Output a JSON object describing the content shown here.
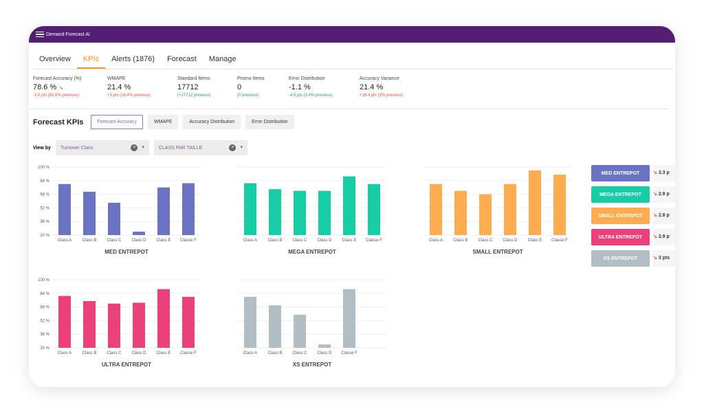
{
  "app": {
    "title": "Demand Forecast AI"
  },
  "tabs": [
    "Overview",
    "KPIs",
    "Alerts (1876)",
    "Forecast",
    "Manage"
  ],
  "kpis": [
    {
      "label": "Forecast Accuracy (%)",
      "value": "78.6 %",
      "delta": "-3.0 pts (81.6% previous)",
      "tone": "red",
      "trend": true
    },
    {
      "label": "WMAPE",
      "value": "21.4 %",
      "delta": "+3 pts (18.4% previous)",
      "tone": "red"
    },
    {
      "label": "Standard Items",
      "value": "17712",
      "delta": "(+17712 previous)",
      "tone": "green"
    },
    {
      "label": "Promo Items",
      "value": "0",
      "delta": "(0 previous)",
      "tone": "green"
    },
    {
      "label": "Error Distribution",
      "value": "-1.1 %",
      "delta": "-4.5 pts (3.4% previous)",
      "tone": "green"
    },
    {
      "label": "Accuracy Variance",
      "value": "21.4 %",
      "delta": "+18.4 pts (3% previous)",
      "tone": "red"
    }
  ],
  "section": {
    "title": "Forecast KPIs",
    "buttons": [
      "Forecast Accuracy",
      "WMAPE",
      "Accuracy Distribution",
      "Error Distribution"
    ]
  },
  "viewby": {
    "label": "View by",
    "filter1": "Turnover Class",
    "filter2": "CLASS PAR TAILLE"
  },
  "chart_data": [
    {
      "type": "bar",
      "title": "MED ENTREPOT",
      "color": "#6b74c2",
      "categories": [
        "Class A",
        "Class B",
        "Class C",
        "Class D",
        "Class E",
        "Classe F"
      ],
      "values": [
        80,
        71,
        58,
        24,
        76,
        81
      ],
      "yticks": [
        "100 %",
        "84 %",
        "68 %",
        "52 %",
        "36 %",
        "20 %"
      ],
      "ylim": [
        20,
        100
      ]
    },
    {
      "type": "bar",
      "title": "MEGA ENTREPOT",
      "color": "#16cda6",
      "categories": [
        "Class A",
        "Class B",
        "Class C",
        "Class D",
        "Class E",
        "Classe F"
      ],
      "values": [
        81,
        74,
        72,
        72,
        89,
        80
      ],
      "ylim": [
        20,
        100
      ]
    },
    {
      "type": "bar",
      "title": "SMALL ENTREPOT",
      "color": "#ffac50",
      "categories": [
        "Class A",
        "Class B",
        "Class C",
        "Class D",
        "Class E",
        "Classe F"
      ],
      "values": [
        80,
        72,
        68,
        80,
        96,
        91
      ],
      "ylim": [
        20,
        100
      ]
    },
    {
      "type": "bar",
      "title": "ULTRA ENTREPOT",
      "color": "#ec407a",
      "categories": [
        "Class A",
        "Class B",
        "Class C",
        "Class D",
        "Class E",
        "Classe F"
      ],
      "values": [
        81,
        75,
        72,
        73,
        89,
        80
      ],
      "yticks": [
        "100 %",
        "84 %",
        "68 %",
        "52 %",
        "36 %",
        "20 %"
      ],
      "ylim": [
        20,
        100
      ]
    },
    {
      "type": "bar",
      "title": "XS ENTREPOT",
      "color": "#b3bec4",
      "categories": [
        "Class A",
        "Class B",
        "Class C",
        "Class D",
        "Classe F"
      ],
      "values": [
        80,
        70,
        59,
        24,
        89
      ],
      "ylim": [
        20,
        100
      ]
    }
  ],
  "legend": [
    {
      "label": "MED ENTREPOT",
      "value": "3.3 p",
      "color": "#6b74c2"
    },
    {
      "label": "MEGA ENTREPOT",
      "value": "2.9 p",
      "color": "#16cda6"
    },
    {
      "label": "SMALL ENTREPOT",
      "value": "2.8 p",
      "color": "#ffac50"
    },
    {
      "label": "ULTRA ENTREPOT",
      "value": "2.9 p",
      "color": "#ec407a"
    },
    {
      "label": "XS ENTREPOT",
      "value": "3 pts",
      "color": "#b3bec4"
    }
  ]
}
